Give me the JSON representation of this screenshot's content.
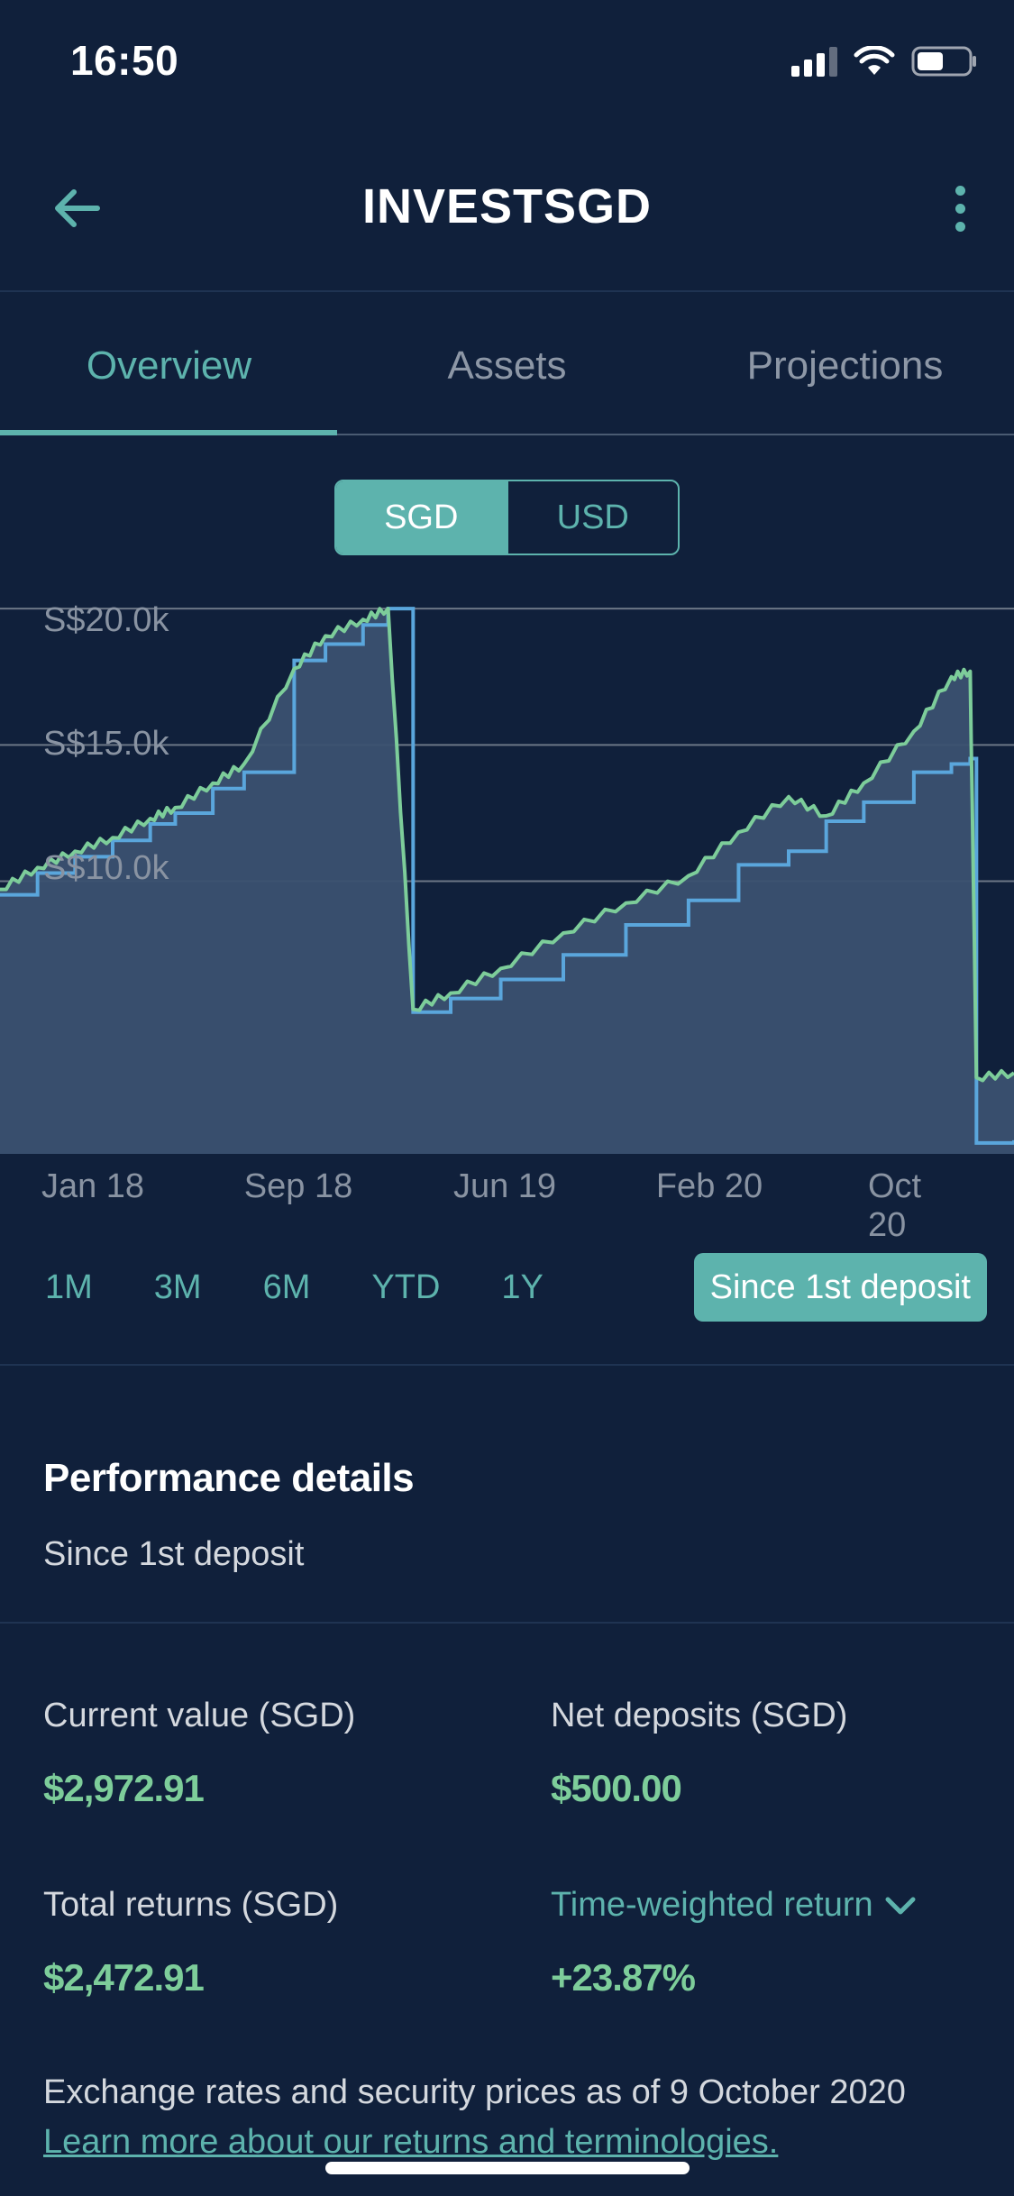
{
  "status_bar": {
    "time": "16:50",
    "icons": [
      "signal-icon",
      "wifi-icon",
      "battery-icon"
    ]
  },
  "header": {
    "title": "INVESTSGD",
    "back_icon": "arrow-left-icon",
    "more_icon": "more-vertical-icon"
  },
  "tabs": [
    {
      "label": "Overview",
      "active": true
    },
    {
      "label": "Assets",
      "active": false
    },
    {
      "label": "Projections",
      "active": false
    }
  ],
  "currency": {
    "options": [
      "SGD",
      "USD"
    ],
    "selected": "SGD"
  },
  "chart_data": {
    "type": "line",
    "x_ticks": [
      "Jan 18",
      "Sep 18",
      "Jun 19",
      "Feb 20",
      "Oct 20"
    ],
    "y_ticks": [
      "S$20.0k",
      "S$15.0k",
      "S$10.0k"
    ],
    "ylim": [
      0,
      20500
    ],
    "grid": true,
    "series": [
      {
        "role": "portfolio value",
        "color": "#7dcd9a",
        "fill": "#3b5170",
        "values": [
          9700,
          10500,
          11100,
          11600,
          12300,
          12700,
          13600,
          14300,
          17800,
          19000,
          19600,
          20000,
          5300,
          5900,
          6800,
          8100,
          9200,
          10200,
          11800,
          13100,
          12400,
          13600,
          15500,
          17500,
          17700,
          2800,
          2970
        ]
      },
      {
        "role": "net deposits",
        "color": "#5aa6dc",
        "values": [
          9500,
          10300,
          10900,
          11500,
          12100,
          12500,
          13400,
          14000,
          18100,
          18700,
          19400,
          20000,
          5200,
          5700,
          6400,
          7300,
          8400,
          9300,
          10600,
          11100,
          12200,
          12900,
          14000,
          14300,
          14500,
          400,
          500
        ]
      }
    ],
    "x": [
      0,
      0.06,
      0.12,
      0.18,
      0.24,
      0.28,
      0.34,
      0.39,
      0.47,
      0.52,
      0.58,
      0.62,
      0.66,
      0.72,
      0.8,
      0.9,
      1.0,
      1.1,
      1.18,
      1.26,
      1.32,
      1.38,
      1.46,
      1.52,
      1.55,
      1.56,
      1.62
    ]
  },
  "periods": [
    {
      "label": "1M",
      "active": false
    },
    {
      "label": "3M",
      "active": false
    },
    {
      "label": "6M",
      "active": false
    },
    {
      "label": "YTD",
      "active": false
    },
    {
      "label": "1Y",
      "active": false
    },
    {
      "label": "Since 1st deposit",
      "active": true
    }
  ],
  "performance": {
    "title": "Performance details",
    "subtitle": "Since 1st deposit",
    "current_value_label": "Current value (SGD)",
    "current_value": "$2,972.91",
    "net_deposits_label": "Net deposits (SGD)",
    "net_deposits": "$500.00",
    "total_returns_label": "Total returns (SGD)",
    "total_returns": "$2,472.91",
    "twr_label": "Time-weighted return",
    "twr_value": "+23.87%"
  },
  "footer": {
    "note": "Exchange rates and security prices as of 9 October 2020",
    "link": "Learn more about our returns and terminologies."
  }
}
